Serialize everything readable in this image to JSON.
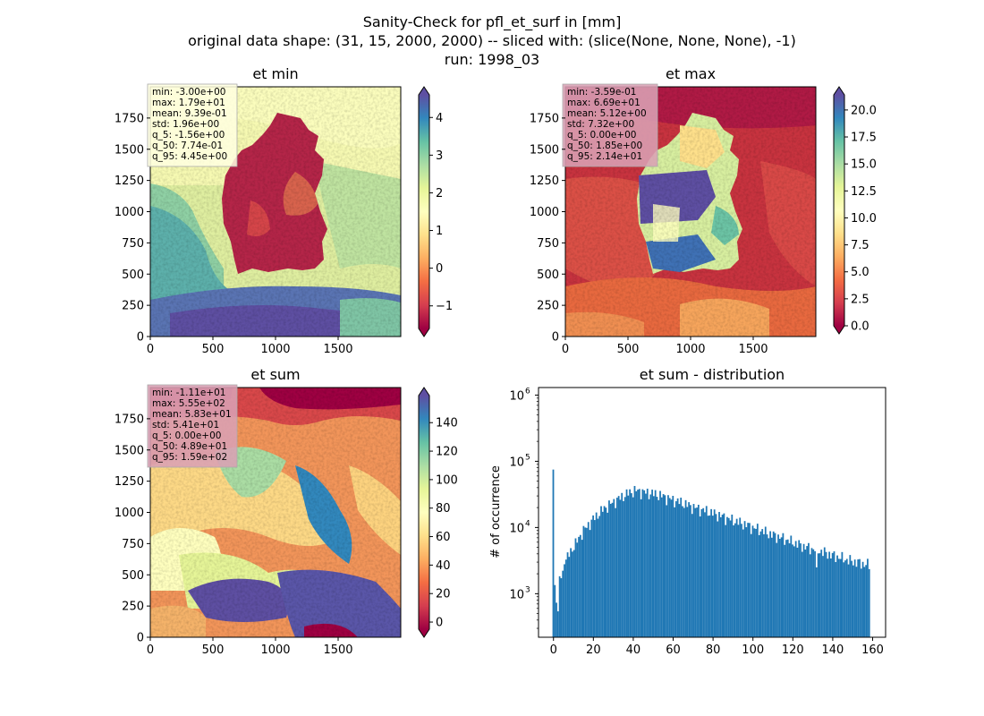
{
  "figure": {
    "title_lines": [
      "Sanity-Check for pfl_et_surf in [mm]",
      "original data shape: (31, 15, 2000, 2000) -- sliced with: (slice(None, None, None), -1)",
      "run: 1998_03"
    ]
  },
  "colors": {
    "colormap": "Spectral",
    "histogram_bar": "#1f77b4",
    "stats_box": "#c98aa3"
  },
  "chart_data": [
    {
      "type": "heatmap",
      "title": "et min",
      "xlim": [
        0,
        2000
      ],
      "ylim": [
        0,
        2000
      ],
      "x_ticks": [
        0,
        500,
        1000,
        1500
      ],
      "y_ticks": [
        0,
        250,
        500,
        750,
        1000,
        1250,
        1500,
        1750
      ],
      "colorbar": {
        "range": [
          -1.6,
          4.6
        ],
        "ticks": [
          "−1",
          "0",
          "1",
          "2",
          "3",
          "4"
        ],
        "tick_values": [
          -1,
          0,
          1,
          2,
          3,
          4
        ],
        "extend": "both"
      },
      "stats": [
        "min: -3.00e+00",
        "max: 1.79e+01",
        "mean: 9.39e-01",
        "std: 1.96e+00",
        "q_5: -1.56e+00",
        "q_50: 7.74e-01",
        "q_95: 4.45e+00"
      ],
      "stats_box_color": "#ffffe0"
    },
    {
      "type": "heatmap",
      "title": "et max",
      "xlim": [
        0,
        2000
      ],
      "ylim": [
        0,
        2000
      ],
      "x_ticks": [
        0,
        500,
        1000,
        1500
      ],
      "y_ticks": [
        0,
        250,
        500,
        750,
        1000,
        1250,
        1500,
        1750
      ],
      "colorbar": {
        "range": [
          0,
          21.4
        ],
        "ticks": [
          "0.0",
          "2.5",
          "5.0",
          "7.5",
          "10.0",
          "12.5",
          "15.0",
          "17.5",
          "20.0"
        ],
        "tick_values": [
          0,
          2.5,
          5,
          7.5,
          10,
          12.5,
          15,
          17.5,
          20
        ],
        "extend": "both"
      },
      "stats": [
        "min: -3.59e-01",
        "max: 6.69e+01",
        "mean: 5.12e+00",
        "std: 7.32e+00",
        "q_5: 0.00e+00",
        "q_50: 1.85e+00",
        "q_95: 2.14e+01"
      ],
      "stats_box_color": "#d9a0b4"
    },
    {
      "type": "heatmap",
      "title": "et sum",
      "xlim": [
        0,
        2000
      ],
      "ylim": [
        0,
        2000
      ],
      "x_ticks": [
        0,
        500,
        1000,
        1500
      ],
      "y_ticks": [
        0,
        250,
        500,
        750,
        1000,
        1250,
        1500,
        1750
      ],
      "colorbar": {
        "range": [
          -5,
          159
        ],
        "ticks": [
          "0",
          "20",
          "40",
          "60",
          "80",
          "100",
          "120",
          "140"
        ],
        "tick_values": [
          0,
          20,
          40,
          60,
          80,
          100,
          120,
          140
        ],
        "extend": "both"
      },
      "stats": [
        "min: -1.11e+01",
        "max: 5.55e+02",
        "mean: 5.83e+01",
        "std: 5.41e+01",
        "q_5: 0.00e+00",
        "q_50: 4.89e+01",
        "q_95: 1.59e+02"
      ],
      "stats_box_color": "#d9a0b4"
    },
    {
      "type": "bar",
      "title": "et sum - distribution",
      "ylabel": "# of occurrence",
      "y_scale": "log",
      "xlim": [
        -7.5,
        166.5
      ],
      "ylim": [
        220,
        1300000
      ],
      "x_ticks": [
        0,
        20,
        40,
        60,
        80,
        100,
        120,
        140,
        160
      ],
      "y_ticks": [
        1000,
        10000,
        100000,
        1000000
      ],
      "y_tick_labels": [
        [
          "10",
          "3"
        ],
        [
          "10",
          "4"
        ],
        [
          "10",
          "5"
        ],
        [
          "10",
          "6"
        ]
      ],
      "bin_start": -0.5,
      "bin_width": 0.8,
      "anchors": [
        [
          -0.4,
          800000
        ],
        [
          0.4,
          1450
        ],
        [
          1.2,
          1200
        ],
        [
          2.0,
          320
        ],
        [
          3.0,
          1850
        ],
        [
          4.0,
          1700
        ],
        [
          5.0,
          2500
        ],
        [
          6.0,
          3100
        ],
        [
          7.5,
          3800
        ],
        [
          9.0,
          4600
        ],
        [
          11.0,
          5600
        ],
        [
          13.0,
          7200
        ],
        [
          15.0,
          9000
        ],
        [
          17.0,
          10500
        ],
        [
          19.0,
          12500
        ],
        [
          21.0,
          14500
        ],
        [
          23.0,
          16500
        ],
        [
          25.0,
          19000
        ],
        [
          27.0,
          21000
        ],
        [
          29.0,
          23000
        ],
        [
          31.0,
          25500
        ],
        [
          33.0,
          27500
        ],
        [
          35.0,
          30000
        ],
        [
          37.0,
          32500
        ],
        [
          39.0,
          34500
        ],
        [
          41.0,
          36500
        ],
        [
          43.0,
          35500
        ],
        [
          45.0,
          34500
        ],
        [
          47.0,
          33500
        ],
        [
          50.0,
          32500
        ],
        [
          53.0,
          31000
        ],
        [
          56.0,
          29000
        ],
        [
          60.0,
          26000
        ],
        [
          64.0,
          24000
        ],
        [
          68.0,
          21500
        ],
        [
          72.0,
          19500
        ],
        [
          76.0,
          18000
        ],
        [
          80.0,
          16500
        ],
        [
          84.0,
          15000
        ],
        [
          88.0,
          13500
        ],
        [
          92.0,
          12300
        ],
        [
          96.0,
          11200
        ],
        [
          100.0,
          10000
        ],
        [
          104.0,
          9100
        ],
        [
          108.0,
          8100
        ],
        [
          112.0,
          7400
        ],
        [
          116.0,
          6700
        ],
        [
          120.0,
          6000
        ],
        [
          124.0,
          5400
        ],
        [
          128.0,
          4900
        ],
        [
          131.2,
          4700
        ],
        [
          131.6,
          400
        ],
        [
          132.0,
          4600
        ],
        [
          136.0,
          4200
        ],
        [
          140.0,
          3800
        ],
        [
          144.0,
          3500
        ],
        [
          148.0,
          3200
        ],
        [
          152.0,
          3000
        ],
        [
          156.0,
          2800
        ],
        [
          158.6,
          2700
        ]
      ]
    }
  ]
}
